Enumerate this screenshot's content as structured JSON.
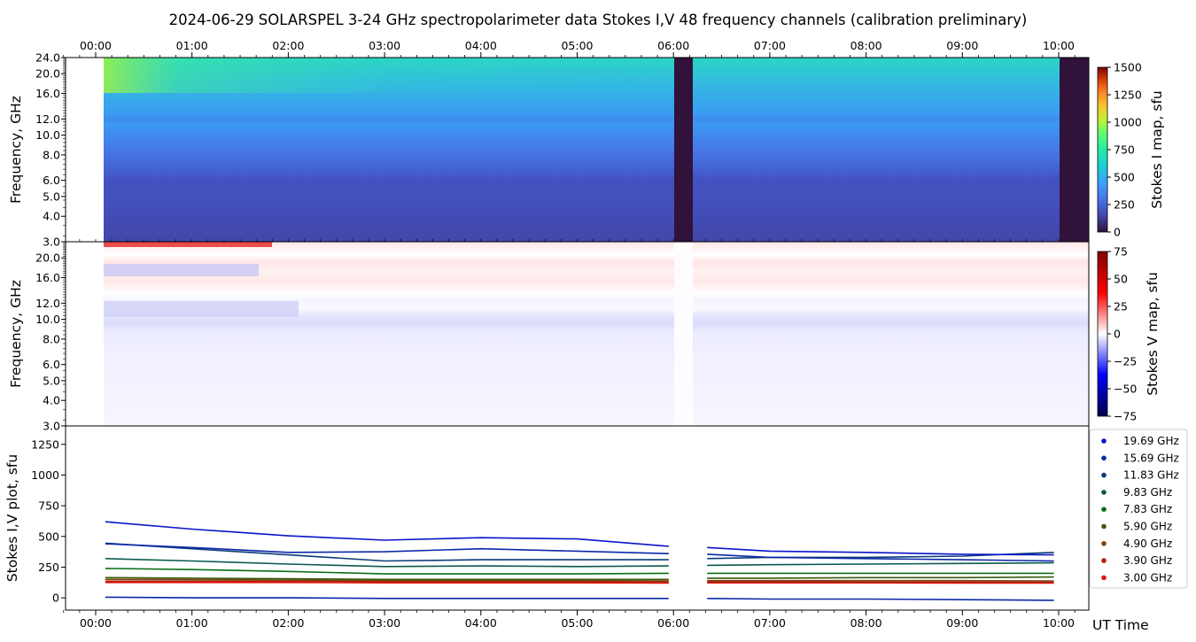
{
  "title": "2024-06-29  SOLARSPEL  3-24 GHz spectropolarimeter data   Stokes I,V   48 frequency channels   (calibration preliminary)",
  "x_axis_label": "UT Time",
  "time_ticks": [
    "00:00",
    "01:00",
    "02:00",
    "03:00",
    "04:00",
    "05:00",
    "06:00",
    "07:00",
    "08:00",
    "09:00",
    "10:00"
  ],
  "panels": {
    "stokes_i_map": {
      "ylabel": "Frequency, GHz",
      "colorbar_label": "Stokes I map, sfu",
      "y_ticks": [
        "3.0",
        "4.0",
        "5.0",
        "6.0",
        "8.0",
        "10.0",
        "12.0",
        "16.0",
        "20.0",
        "24.0"
      ],
      "colorbar_ticks": [
        "0",
        "250",
        "500",
        "750",
        "1000",
        "1250",
        "1500"
      ]
    },
    "stokes_v_map": {
      "ylabel": "Frequency, GHz",
      "colorbar_label": "Stokes V map, sfu",
      "y_ticks": [
        "3.0",
        "4.0",
        "5.0",
        "6.0",
        "8.0",
        "10.0",
        "12.0",
        "16.0",
        "20.0"
      ],
      "colorbar_ticks": [
        "75",
        "50",
        "25",
        "0",
        "−25",
        "−50",
        "−75"
      ]
    },
    "plot": {
      "ylabel": "Stokes I,V plot, sfu",
      "y_ticks": [
        "0",
        "250",
        "500",
        "750",
        "1000",
        "1250"
      ]
    }
  },
  "legend": [
    {
      "label": "19.69 GHz",
      "color": "#0a14c8"
    },
    {
      "label": "15.69 GHz",
      "color": "#0a28a8"
    },
    {
      "label": "11.83 GHz",
      "color": "#0a3c78"
    },
    {
      "label": "9.83 GHz",
      "color": "#0a5a50"
    },
    {
      "label": "7.83 GHz",
      "color": "#0a6e14"
    },
    {
      "label": "5.90 GHz",
      "color": "#3c5a0a"
    },
    {
      "label": "4.90 GHz",
      "color": "#784614"
    },
    {
      "label": "3.90 GHz",
      "color": "#b41e0a"
    },
    {
      "label": "3.00 GHz",
      "color": "#e6140a"
    }
  ],
  "chart_data": [
    {
      "type": "heatmap",
      "name": "Stokes I map",
      "x_range": [
        "-00:20",
        "10:20"
      ],
      "y_range_ghz": [
        3.0,
        24.0
      ],
      "y_scale": "log",
      "colorbar_range_sfu": [
        0,
        1500
      ],
      "data_start": "00:05",
      "data_gap": [
        "06:00",
        "06:20"
      ],
      "data_end": "10:00"
    },
    {
      "type": "heatmap",
      "name": "Stokes V map",
      "x_range": [
        "-00:20",
        "10:20"
      ],
      "y_range_ghz": [
        3.0,
        24.0
      ],
      "y_scale": "log",
      "colorbar_range_sfu": [
        -75,
        75
      ],
      "data_gap": [
        "06:00",
        "06:20"
      ]
    },
    {
      "type": "line",
      "name": "Stokes I,V plot",
      "ylim": [
        -100,
        1400
      ],
      "x_hours": [
        0.1,
        1.0,
        2.0,
        3.0,
        4.0,
        5.0,
        5.95,
        6.35,
        7.0,
        8.0,
        9.0,
        9.95
      ],
      "series": [
        {
          "name": "19.69 GHz",
          "values": [
            620,
            560,
            505,
            470,
            490,
            480,
            420,
            410,
            380,
            370,
            355,
            350
          ]
        },
        {
          "name": "15.69 GHz",
          "values": [
            440,
            410,
            370,
            375,
            400,
            380,
            360,
            355,
            330,
            320,
            310,
            300
          ]
        },
        {
          "name": "11.83 GHz",
          "values": [
            445,
            400,
            350,
            300,
            310,
            310,
            310,
            320,
            330,
            330,
            340,
            370
          ]
        },
        {
          "name": "9.83 GHz",
          "values": [
            320,
            300,
            275,
            255,
            260,
            255,
            260,
            265,
            270,
            275,
            280,
            285
          ]
        },
        {
          "name": "7.83 GHz",
          "values": [
            240,
            230,
            215,
            195,
            195,
            195,
            200,
            200,
            200,
            200,
            200,
            200
          ]
        },
        {
          "name": "5.90 GHz",
          "values": [
            165,
            160,
            155,
            150,
            150,
            150,
            150,
            160,
            160,
            165,
            165,
            170
          ]
        },
        {
          "name": "4.90 GHz",
          "values": [
            150,
            148,
            145,
            140,
            140,
            140,
            138,
            140,
            140,
            140,
            140,
            138
          ]
        },
        {
          "name": "3.90 GHz",
          "values": [
            135,
            135,
            135,
            132,
            132,
            130,
            130,
            130,
            130,
            128,
            128,
            128
          ]
        },
        {
          "name": "3.00 GHz",
          "values": [
            125,
            125,
            125,
            122,
            122,
            122,
            120,
            122,
            122,
            122,
            120,
            120
          ]
        }
      ],
      "stokes_v_series_near_zero": [
        5,
        0,
        0,
        -5,
        -5,
        -5,
        -5,
        -5,
        -10,
        -10,
        -15,
        -20
      ]
    }
  ]
}
